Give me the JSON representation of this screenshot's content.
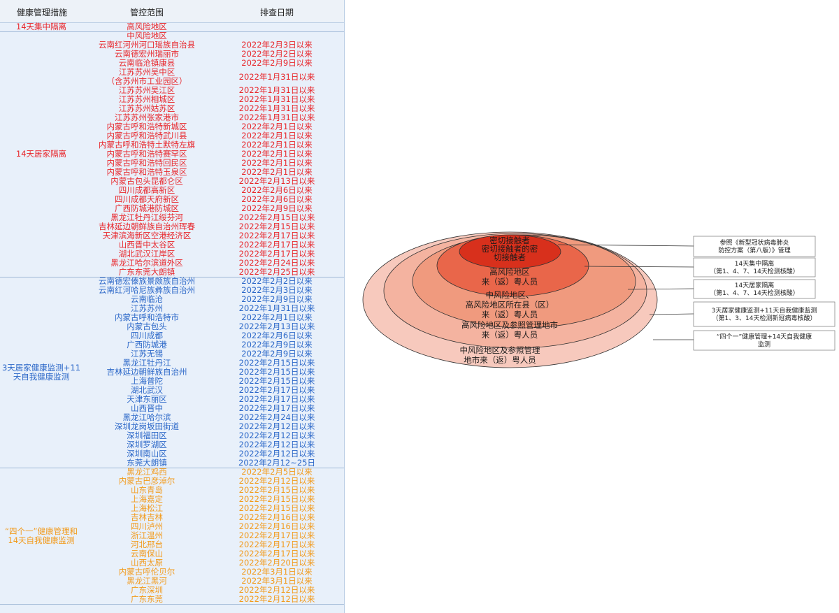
{
  "table": {
    "headers": {
      "measure": "健康管理措施",
      "area": "管控范围",
      "date": "排查日期"
    },
    "groups": [
      {
        "measure": "14天集中隔离",
        "color": "#e8262b",
        "rows": [
          {
            "area": "高风险地区",
            "date": ""
          }
        ]
      },
      {
        "measure": "14天居家隔离",
        "color": "#e8262b",
        "rows": [
          {
            "area": "中风险地区",
            "date": ""
          },
          {
            "area": "云南红河州河口瑶族自治县",
            "date": "2022年2月3日以来"
          },
          {
            "area": "云南德宏州瑞丽市",
            "date": "2022年2月2日以来"
          },
          {
            "area": "云南临沧镇康县",
            "date": "2022年2月9日以来"
          },
          {
            "area": "江苏苏州吴中区",
            "area2": "（含苏州市工业园区）",
            "date": "2022年1月31日以来"
          },
          {
            "area": "江苏苏州吴江区",
            "date": "2022年1月31日以来"
          },
          {
            "area": "江苏苏州相城区",
            "date": "2022年1月31日以来"
          },
          {
            "area": "江苏苏州姑苏区",
            "date": "2022年1月31日以来"
          },
          {
            "area": "江苏苏州张家港市",
            "date": "2022年1月31日以来"
          },
          {
            "area": "内蒙古呼和浩特新城区",
            "date": "2022年2月1日以来"
          },
          {
            "area": "内蒙古呼和浩特武川县",
            "date": "2022年2月1日以来"
          },
          {
            "area": "内蒙古呼和浩特土默特左旗",
            "date": "2022年2月1日以来"
          },
          {
            "area": "内蒙古呼和浩特赛罕区",
            "date": "2022年2月1日以来"
          },
          {
            "area": "内蒙古呼和浩特回民区",
            "date": "2022年2月1日以来"
          },
          {
            "area": "内蒙古呼和浩特玉泉区",
            "date": "2022年2月1日以来"
          },
          {
            "area": "内蒙古包头昆都仑区",
            "date": "2022年2月13日以来"
          },
          {
            "area": "四川成都高新区",
            "date": "2022年2月6日以来"
          },
          {
            "area": "四川成都天府新区",
            "date": "2022年2月6日以来"
          },
          {
            "area": "广西防城港防城区",
            "date": "2022年2月9日以来"
          },
          {
            "area": "黑龙江牡丹江绥芬河",
            "date": "2022年2月15日以来"
          },
          {
            "area": "吉林延边朝鲜族自治州珲春",
            "date": "2022年2月15日以来"
          },
          {
            "area": "天津滨海新区空港经济区",
            "date": "2022年2月17日以来"
          },
          {
            "area": "山西晋中太谷区",
            "date": "2022年2月17日以来"
          },
          {
            "area": "湖北武汉江岸区",
            "date": "2022年2月17日以来"
          },
          {
            "area": "黑龙江哈尔滨道外区",
            "date": "2022年2月24日以来"
          },
          {
            "area": "广东东莞大朗镇",
            "date": "2022年2月25日以来"
          }
        ]
      },
      {
        "measure": "3天居家健康监测+11天自我健康监测",
        "color": "#2b67c8",
        "rows": [
          {
            "area": "云南德宏傣族景颇族自治州",
            "date": "2022年2月2日以来"
          },
          {
            "area": "云南红河哈尼族彝族自治州",
            "date": "2022年2月3日以来"
          },
          {
            "area": "云南临沧",
            "date": "2022年2月9日以来"
          },
          {
            "area": "江苏苏州",
            "date": "2022年1月31日以来"
          },
          {
            "area": "内蒙古呼和浩特市",
            "date": "2022年2月1日以来"
          },
          {
            "area": "内蒙古包头",
            "date": "2022年2月13日以来"
          },
          {
            "area": "四川成都",
            "date": "2022年2月6日以来"
          },
          {
            "area": "广西防城港",
            "date": "2022年2月9日以来"
          },
          {
            "area": "江苏无锡",
            "date": "2022年2月9日以来"
          },
          {
            "area": "黑龙江牡丹江",
            "date": "2022年2月15日以来"
          },
          {
            "area": "吉林延边朝鲜族自治州",
            "date": "2022年2月15日以来"
          },
          {
            "area": "上海普陀",
            "date": "2022年2月15日以来"
          },
          {
            "area": "湖北武汉",
            "date": "2022年2月17日以来"
          },
          {
            "area": "天津东丽区",
            "date": "2022年2月17日以来"
          },
          {
            "area": "山西晋中",
            "date": "2022年2月17日以来"
          },
          {
            "area": "黑龙江哈尔滨",
            "date": "2022年2月24日以来"
          },
          {
            "area": "深圳龙岗坂田街道",
            "date": "2022年2月12日以来"
          },
          {
            "area": "深圳福田区",
            "date": "2022年2月12日以来"
          },
          {
            "area": "深圳罗湖区",
            "date": "2022年2月12日以来"
          },
          {
            "area": "深圳南山区",
            "date": "2022年2月12日以来"
          },
          {
            "area": "东莞大朗镇",
            "date": "2022年2月12~25日"
          }
        ]
      },
      {
        "measure": "“四个一”健康管理和14天自我健康监测",
        "color": "#f29a1b",
        "rows": [
          {
            "area": "黑龙江鸡西",
            "date": "2022年2月5日以来"
          },
          {
            "area": "内蒙古巴彦淖尔",
            "date": "2022年2月12日以来"
          },
          {
            "area": "山东青岛",
            "date": "2022年2月15日以来"
          },
          {
            "area": "上海嘉定",
            "date": "2022年2月15日以来"
          },
          {
            "area": "上海松江",
            "date": "2022年2月15日以来"
          },
          {
            "area": "吉林吉林",
            "date": "2022年2月16日以来"
          },
          {
            "area": "四川泸州",
            "date": "2022年2月16日以来"
          },
          {
            "area": "浙江温州",
            "date": "2022年2月17日以来"
          },
          {
            "area": "河北邢台",
            "date": "2022年2月17日以来"
          },
          {
            "area": "云南保山",
            "date": "2022年2月17日以来"
          },
          {
            "area": "山西太原",
            "date": "2022年2月20日以来"
          },
          {
            "area": "内蒙古呼伦贝尔",
            "date": "2022年3月1日以来"
          },
          {
            "area": "黑龙江黑河",
            "date": "2022年3月1日以来"
          },
          {
            "area": "广东深圳",
            "date": "2022年2月12日以来"
          },
          {
            "area": "广东东莞",
            "date": "2022年2月12日以来"
          }
        ]
      }
    ]
  },
  "diagram": {
    "rings": [
      {
        "label_lines": [
          "中风险地区及参照管理",
          "地市来（返）粤人员"
        ],
        "fill": "#f7c9bd"
      },
      {
        "label_lines": [
          "高风险地区及参照管理地市",
          "来（返）粤人员"
        ],
        "fill": "#f4b3a0"
      },
      {
        "label_lines": [
          "中风险地区、",
          "高风险地区所在县（区）",
          "来（返）粤人员"
        ],
        "fill": "#f09a7e"
      },
      {
        "label_lines": [
          "高风险地区",
          "来（返）粤人员"
        ],
        "fill": "#e9664a"
      },
      {
        "label_lines": [
          "密切接触者",
          "密切接触者的密",
          "切接触者"
        ],
        "fill": "#d8301c"
      }
    ],
    "legend": [
      {
        "lines": [
          "参照《新型冠状病毒肺炎",
          "防控方案（第八版）》管理"
        ]
      },
      {
        "lines": [
          "14天集中隔离",
          "（第1、4、7、14天检测核酸）"
        ]
      },
      {
        "lines": [
          "14天居家隔离",
          "（第1、4、7、14天检测核酸）"
        ]
      },
      {
        "lines": [
          "3天居家健康监测+11天自我健康监测",
          "（第1、3、14天检测新冠病毒核酸）"
        ]
      },
      {
        "lines": [
          "“四个一”健康管理+14天自我健康",
          "监测"
        ]
      }
    ]
  }
}
